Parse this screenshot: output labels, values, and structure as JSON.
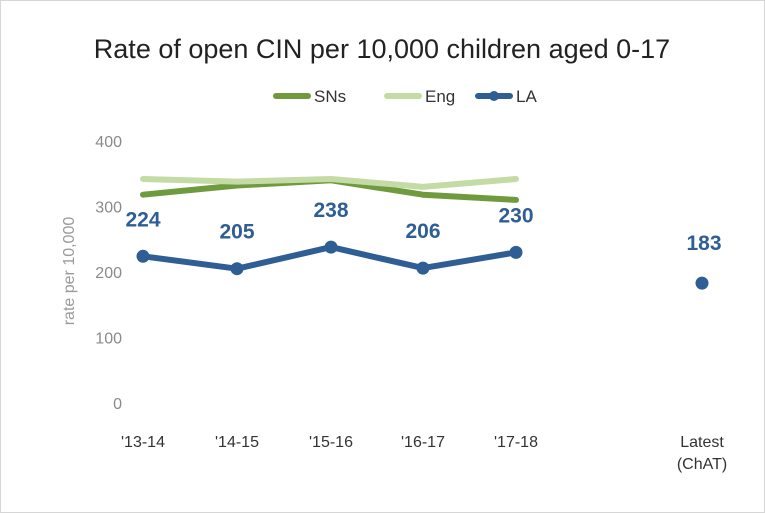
{
  "chart_data": {
    "type": "line",
    "title": "Rate of open CIN per 10,000 children aged 0-17",
    "xlabel": "",
    "ylabel": "rate per 10,000",
    "categories": [
      "'13-14",
      "'14-15",
      "'15-16",
      "'16-17",
      "'17-18",
      "Latest (ChAT)"
    ],
    "category_lines": [
      [
        "'13-14"
      ],
      [
        "'14-15"
      ],
      [
        "'15-16"
      ],
      [
        "'16-17"
      ],
      [
        "'17-18"
      ],
      [
        "Latest",
        "(ChAT)"
      ]
    ],
    "ylim": [
      0,
      400
    ],
    "yticks": [
      0,
      100,
      200,
      300,
      400
    ],
    "grid": false,
    "legend_position": "top",
    "series": [
      {
        "name": "SNs",
        "color": "#6f9a3d",
        "marker": false,
        "values": [
          318,
          332,
          340,
          318,
          310,
          null
        ]
      },
      {
        "name": "Eng",
        "color": "#c5dba6",
        "marker": false,
        "values": [
          342,
          338,
          342,
          330,
          342,
          null
        ]
      },
      {
        "name": "LA",
        "color": "#2e5e93",
        "marker": true,
        "values": [
          224,
          205,
          238,
          206,
          230,
          183
        ],
        "data_labels": [
          "224",
          "205",
          "238",
          "206",
          "230",
          "183"
        ]
      }
    ]
  }
}
